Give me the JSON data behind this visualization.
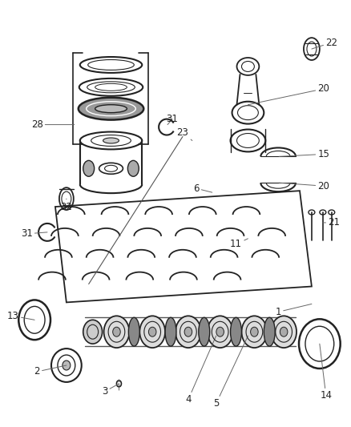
{
  "bg_color": "#ffffff",
  "line_color": "#222222",
  "fig_w": 4.38,
  "fig_h": 5.33,
  "dpi": 100
}
